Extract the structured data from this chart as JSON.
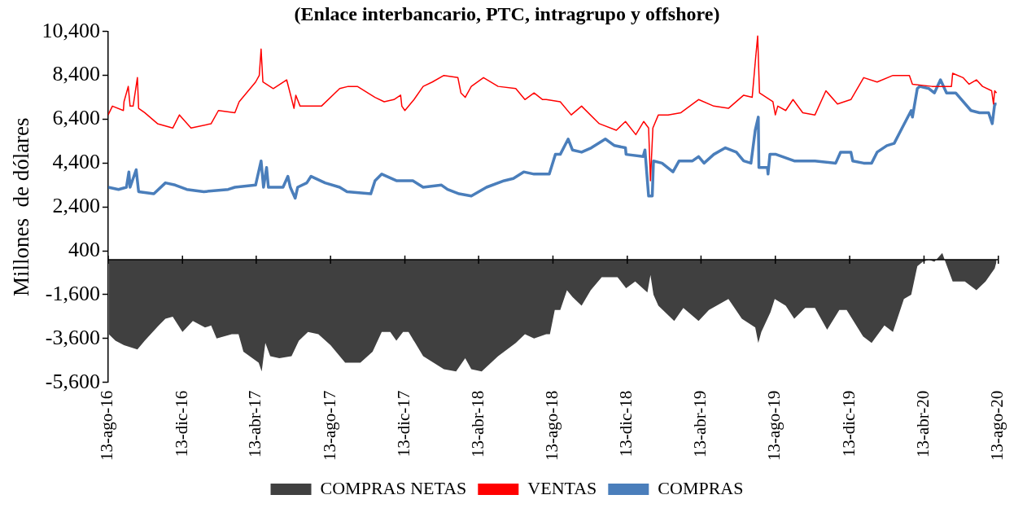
{
  "chart_data": {
    "type": "line",
    "title": "(Enlace interbancario, PTC, intragrupo y offshore)",
    "ylabel": "Millones  de dólares",
    "legend": "bottom",
    "marker": "none",
    "grid": false,
    "xlim": [
      "2016-08-13",
      "2020-08-13"
    ],
    "xticks": [
      {
        "value": "2016-08-13",
        "label": "13-ago-16"
      },
      {
        "value": "2016-12-13",
        "label": "13-dic-16"
      },
      {
        "value": "2017-04-13",
        "label": "13-abr-17"
      },
      {
        "value": "2017-08-13",
        "label": "13-ago-17"
      },
      {
        "value": "2017-12-13",
        "label": "13-dic-17"
      },
      {
        "value": "2018-04-13",
        "label": "13-abr-18"
      },
      {
        "value": "2018-08-13",
        "label": "13-ago-18"
      },
      {
        "value": "2018-12-13",
        "label": "13-dic-18"
      },
      {
        "value": "2019-04-13",
        "label": "13-abr-19"
      },
      {
        "value": "2019-08-13",
        "label": "13-ago-19"
      },
      {
        "value": "2019-12-13",
        "label": "13-dic-19"
      },
      {
        "value": "2020-04-13",
        "label": "13-abr-20"
      },
      {
        "value": "2020-08-13",
        "label": "13-ago-20"
      }
    ],
    "ylim": [
      -5600,
      10400
    ],
    "yticks": [
      {
        "value": -5600,
        "label": "-5,600"
      },
      {
        "value": -3600,
        "label": "-3,600"
      },
      {
        "value": -1600,
        "label": "-1,600"
      },
      400,
      {
        "value": 2400,
        "label": "2,400"
      },
      {
        "value": 4400,
        "label": "4,400"
      },
      {
        "value": 6400,
        "label": "6,400"
      },
      {
        "value": 8400,
        "label": "8,400"
      },
      {
        "value": 10400,
        "label": "10,400"
      }
    ],
    "series": [
      {
        "name": "COMPRAS NETAS",
        "type": "area",
        "color": "#404040",
        "x": [
          "2016-08-14",
          "2016-08-25",
          "2016-09-08",
          "2016-09-30",
          "2016-10-12",
          "2016-11-04",
          "2016-11-15",
          "2016-11-27",
          "2016-12-13",
          "2016-12-30",
          "2017-01-19",
          "2017-01-29",
          "2017-02-07",
          "2017-03-04",
          "2017-03-15",
          "2017-03-23",
          "2017-04-17",
          "2017-04-22",
          "2017-04-28",
          "2017-05-06",
          "2017-05-21",
          "2017-06-10",
          "2017-06-22",
          "2017-07-07",
          "2017-07-24",
          "2017-08-13",
          "2017-09-06",
          "2017-10-01",
          "2017-10-21",
          "2017-11-05",
          "2017-11-19",
          "2017-11-29",
          "2017-12-10",
          "2017-12-19",
          "2018-01-12",
          "2018-02-15",
          "2018-03-07",
          "2018-03-22",
          "2018-04-01",
          "2018-04-18",
          "2018-05-15",
          "2018-06-13",
          "2018-06-28",
          "2018-07-13",
          "2018-08-02",
          "2018-08-08",
          "2018-08-16",
          "2018-08-25",
          "2018-09-05",
          "2018-09-14",
          "2018-09-29",
          "2018-10-14",
          "2018-11-01",
          "2018-11-27",
          "2018-12-11",
          "2018-12-26",
          "2019-01-15",
          "2019-01-20",
          "2019-01-25",
          "2019-02-02",
          "2019-02-28",
          "2019-03-15",
          "2019-04-09",
          "2019-04-26",
          "2019-05-28",
          "2019-06-19",
          "2019-07-11",
          "2019-07-16",
          "2019-07-21",
          "2019-08-05",
          "2019-08-12",
          "2019-08-30",
          "2019-09-13",
          "2019-10-01",
          "2019-10-17",
          "2019-11-06",
          "2019-11-26",
          "2019-12-08",
          "2020-01-04",
          "2020-01-18",
          "2020-02-08",
          "2020-02-22",
          "2020-03-11",
          "2020-03-23",
          "2020-04-02",
          "2020-04-11",
          "2020-04-21",
          "2020-04-30",
          "2020-05-13",
          "2020-05-18",
          "2020-05-30",
          "2020-06-19",
          "2020-07-08",
          "2020-07-23",
          "2020-08-07",
          "2020-08-10"
        ],
        "values": [
          -3400,
          -3700,
          -3900,
          -4100,
          -3700,
          -3000,
          -2700,
          -2600,
          -3300,
          -2800,
          -3100,
          -3000,
          -3600,
          -3400,
          -3400,
          -4200,
          -4700,
          -5100,
          -3800,
          -4400,
          -4500,
          -4400,
          -3700,
          -3300,
          -3400,
          -3900,
          -4700,
          -4700,
          -4200,
          -3300,
          -3300,
          -3700,
          -3300,
          -3300,
          -4400,
          -5000,
          -5100,
          -4500,
          -5000,
          -5100,
          -4400,
          -3800,
          -3400,
          -3600,
          -3400,
          -3400,
          -2300,
          -2300,
          -1400,
          -1700,
          -2100,
          -1400,
          -800,
          -800,
          -1300,
          -1000,
          -1500,
          -700,
          -1600,
          -2100,
          -2800,
          -2200,
          -2800,
          -2300,
          -1800,
          -2700,
          -3100,
          -3800,
          -3300,
          -2400,
          -1800,
          -2100,
          -2700,
          -2200,
          -2200,
          -3200,
          -2300,
          -2300,
          -3500,
          -3800,
          -3000,
          -3300,
          -1800,
          -1600,
          -300,
          -100,
          0,
          -100,
          300,
          -100,
          -1000,
          -1000,
          -1400,
          -1000,
          -400,
          -100
        ]
      },
      {
        "name": "VENTAS",
        "type": "line",
        "color": "#ff0000",
        "x": [
          "2016-08-13",
          "2016-08-20",
          "2016-09-07",
          "2016-09-08",
          "2016-09-15",
          "2016-09-18",
          "2016-09-23",
          "2016-09-30",
          "2016-10-02",
          "2016-10-12",
          "2016-11-02",
          "2016-11-27",
          "2016-12-08",
          "2016-12-27",
          "2017-01-29",
          "2017-02-10",
          "2017-03-09",
          "2017-03-16",
          "2017-04-12",
          "2017-04-18",
          "2017-04-21",
          "2017-04-24",
          "2017-05-11",
          "2017-06-02",
          "2017-06-14",
          "2017-06-17",
          "2017-06-24",
          "2017-07-29",
          "2017-08-28",
          "2017-09-11",
          "2017-09-26",
          "2017-10-25",
          "2017-11-09",
          "2017-11-25",
          "2017-12-06",
          "2017-12-08",
          "2017-12-13",
          "2017-12-28",
          "2018-01-12",
          "2018-01-27",
          "2018-02-15",
          "2018-03-10",
          "2018-03-15",
          "2018-03-22",
          "2018-04-01",
          "2018-04-21",
          "2018-05-15",
          "2018-06-13",
          "2018-06-28",
          "2018-07-13",
          "2018-07-27",
          "2018-08-02",
          "2018-08-25",
          "2018-09-12",
          "2018-09-29",
          "2018-10-28",
          "2018-11-25",
          "2018-12-10",
          "2018-12-27",
          "2019-01-09",
          "2019-01-17",
          "2019-01-20",
          "2019-01-24",
          "2019-02-02",
          "2019-02-18",
          "2019-03-11",
          "2019-04-09",
          "2019-05-04",
          "2019-05-28",
          "2019-06-22",
          "2019-07-06",
          "2019-07-11",
          "2019-07-15",
          "2019-07-18",
          "2019-08-09",
          "2019-08-13",
          "2019-08-17",
          "2019-08-30",
          "2019-09-11",
          "2019-09-27",
          "2019-10-17",
          "2019-11-04",
          "2019-11-23",
          "2019-12-15",
          "2020-01-05",
          "2020-01-27",
          "2020-02-22",
          "2020-03-20",
          "2020-03-25",
          "2020-04-26",
          "2020-05-28",
          "2020-05-30",
          "2020-06-16",
          "2020-06-26",
          "2020-07-08",
          "2020-07-18",
          "2020-08-02",
          "2020-08-05",
          "2020-08-07",
          "2020-08-10"
        ],
        "values": [
          6600,
          7000,
          6800,
          7200,
          7900,
          7000,
          7000,
          8300,
          6900,
          6700,
          6200,
          6000,
          6600,
          6000,
          6200,
          6800,
          6700,
          7200,
          8100,
          8400,
          9600,
          8100,
          7800,
          8200,
          6900,
          7500,
          7000,
          7000,
          7800,
          7900,
          7900,
          7400,
          7200,
          7300,
          7500,
          7000,
          6800,
          7300,
          7900,
          8100,
          8400,
          8300,
          7600,
          7400,
          7900,
          8300,
          7900,
          7800,
          7300,
          7600,
          7300,
          7300,
          7200,
          6600,
          7000,
          6200,
          5900,
          6300,
          5700,
          6300,
          6000,
          3600,
          6000,
          6600,
          6600,
          6700,
          7300,
          7000,
          6900,
          7500,
          7400,
          9000,
          10200,
          7600,
          7200,
          6600,
          7000,
          6800,
          7300,
          6700,
          6600,
          7700,
          7100,
          7300,
          8300,
          8100,
          8400,
          8400,
          8000,
          7900,
          7900,
          8500,
          8300,
          8000,
          8200,
          7900,
          7700,
          7100,
          7700,
          7600
        ]
      },
      {
        "name": "COMPRAS",
        "type": "line",
        "color": "#4a7ebb",
        "x": [
          "2016-08-13",
          "2016-08-30",
          "2016-09-12",
          "2016-09-16",
          "2016-09-18",
          "2016-09-28",
          "2016-10-02",
          "2016-10-27",
          "2016-11-15",
          "2016-12-01",
          "2016-12-20",
          "2017-01-17",
          "2017-02-26",
          "2017-03-09",
          "2017-04-12",
          "2017-04-21",
          "2017-04-25",
          "2017-04-30",
          "2017-05-03",
          "2017-05-27",
          "2017-06-04",
          "2017-06-08",
          "2017-06-16",
          "2017-06-20",
          "2017-07-05",
          "2017-07-12",
          "2017-08-04",
          "2017-08-28",
          "2017-09-09",
          "2017-10-18",
          "2017-10-25",
          "2017-11-05",
          "2017-11-29",
          "2017-12-26",
          "2018-01-12",
          "2018-02-11",
          "2018-02-21",
          "2018-03-12",
          "2018-04-01",
          "2018-04-26",
          "2018-05-25",
          "2018-06-09",
          "2018-06-26",
          "2018-07-13",
          "2018-08-02",
          "2018-08-07",
          "2018-08-17",
          "2018-08-25",
          "2018-09-07",
          "2018-09-14",
          "2018-09-29",
          "2018-10-15",
          "2018-11-07",
          "2018-11-22",
          "2018-12-10",
          "2018-12-11",
          "2019-01-08",
          "2019-01-11",
          "2019-01-17",
          "2019-01-23",
          "2019-01-25",
          "2019-02-08",
          "2019-02-26",
          "2019-03-08",
          "2019-03-30",
          "2019-04-09",
          "2019-04-18",
          "2019-05-04",
          "2019-05-23",
          "2019-06-10",
          "2019-06-22",
          "2019-07-04",
          "2019-07-11",
          "2019-07-16",
          "2019-07-17",
          "2019-07-31",
          "2019-08-01",
          "2019-08-04",
          "2019-08-14",
          "2019-09-13",
          "2019-10-17",
          "2019-11-20",
          "2019-11-28",
          "2019-12-15",
          "2019-12-18",
          "2020-01-05",
          "2020-01-18",
          "2020-01-27",
          "2020-02-12",
          "2020-02-24",
          "2020-03-08",
          "2020-03-23",
          "2020-03-25",
          "2020-04-02",
          "2020-04-06",
          "2020-04-21",
          "2020-04-30",
          "2020-05-10",
          "2020-05-20",
          "2020-06-04",
          "2020-06-29",
          "2020-07-13",
          "2020-07-28",
          "2020-08-03",
          "2020-08-07",
          "2020-08-10"
        ],
        "values": [
          3300,
          3200,
          3300,
          4000,
          3300,
          4100,
          3100,
          3000,
          3500,
          3400,
          3200,
          3100,
          3200,
          3300,
          3400,
          4500,
          3300,
          4200,
          3300,
          3300,
          3800,
          3300,
          2800,
          3300,
          3500,
          3800,
          3500,
          3300,
          3100,
          3000,
          3600,
          3900,
          3600,
          3600,
          3300,
          3400,
          3200,
          3000,
          2900,
          3300,
          3600,
          3700,
          4000,
          3900,
          3900,
          3900,
          4800,
          4800,
          5500,
          5000,
          4900,
          5100,
          5500,
          5200,
          5100,
          4800,
          4700,
          5000,
          2900,
          2900,
          4500,
          4400,
          4000,
          4500,
          4500,
          4700,
          4400,
          4800,
          5100,
          4900,
          4500,
          4400,
          5900,
          6500,
          4200,
          4200,
          3900,
          4800,
          4800,
          4500,
          4500,
          4400,
          4900,
          4900,
          4500,
          4400,
          4400,
          4900,
          5200,
          5300,
          6000,
          6800,
          6500,
          7800,
          7900,
          7800,
          7600,
          8200,
          7600,
          7600,
          6800,
          6700,
          6700,
          6200,
          7100,
          7100
        ]
      }
    ]
  }
}
